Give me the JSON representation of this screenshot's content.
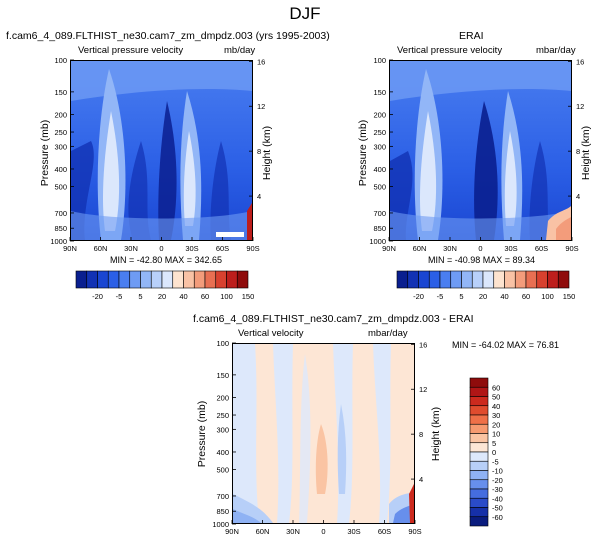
{
  "title": "DJF",
  "chart_data": [
    {
      "type": "heatmap",
      "title": "f.cam6_4_089.FLTHIST_ne30.cam7_zm_dmpdz.003 (yrs 1995-2003)",
      "left_label": "Vertical pressure velocity",
      "units": "mb/day",
      "ylabel": "Pressure (mb)",
      "ylabel_right": "Height (km)",
      "x_ticks": [
        "90N",
        "60N",
        "30N",
        "0",
        "30S",
        "60S",
        "90S"
      ],
      "y_ticks": [
        100,
        150,
        200,
        250,
        300,
        400,
        500,
        700,
        850,
        1000
      ],
      "y_right_ticks": [
        4,
        8,
        12,
        16
      ],
      "ylim": [
        1000,
        100
      ],
      "log_y": true,
      "min": "-42.80",
      "max": "342.65",
      "stats_text": "MIN = -42.80   MAX = 342.65"
    },
    {
      "type": "heatmap",
      "title": "ERAI",
      "left_label": "Vertical pressure velocity",
      "units": "mbar/day",
      "ylabel": "Pressure (mb)",
      "ylabel_right": "Height (km)",
      "x_ticks": [
        "90N",
        "60N",
        "30N",
        "0",
        "30S",
        "60S",
        "90S"
      ],
      "y_ticks": [
        100,
        150,
        200,
        250,
        300,
        400,
        500,
        700,
        850,
        1000
      ],
      "y_right_ticks": [
        4,
        8,
        12,
        16
      ],
      "ylim": [
        1000,
        100
      ],
      "log_y": true,
      "min": "-40.98",
      "max": "89.34",
      "stats_text": "MIN = -40.98   MAX = 89.34"
    },
    {
      "type": "heatmap",
      "title": "f.cam6_4_089.FLTHIST_ne30.cam7_zm_dmpdz.003 - ERAI",
      "left_label": "Vertical velocity",
      "units": "mbar/day",
      "ylabel": "Pressure (mb)",
      "ylabel_right": "Height (km)",
      "x_ticks": [
        "90N",
        "60N",
        "30N",
        "0",
        "30S",
        "60S",
        "90S"
      ],
      "y_ticks": [
        100,
        150,
        200,
        250,
        300,
        400,
        500,
        700,
        850,
        1000
      ],
      "y_right_ticks": [
        4,
        8,
        12,
        16
      ],
      "ylim": [
        1000,
        100
      ],
      "log_y": true,
      "min": "-64.02",
      "max": "76.81",
      "stats_text": "MIN = -64.02   MAX = 76.81"
    }
  ],
  "colorbars": {
    "top": {
      "labels": [
        "-20",
        "-5",
        "5",
        "20",
        "40",
        "60",
        "100",
        "150"
      ],
      "colors": [
        "#0a1f8f",
        "#1232b4",
        "#1a46d2",
        "#2b5fe6",
        "#4a7ef0",
        "#6e9bf4",
        "#92b6f7",
        "#b8d0fa",
        "#dbe7fc",
        "#fde3cf",
        "#f9c2a5",
        "#f39c7b",
        "#e86f52",
        "#d8412f",
        "#bd1e1c",
        "#8f0c0c"
      ]
    },
    "diff": {
      "labels": [
        "60",
        "50",
        "40",
        "30",
        "20",
        "10",
        "5",
        "0",
        "-5",
        "-10",
        "-20",
        "-30",
        "-40",
        "-50",
        "-60"
      ],
      "colors": [
        "#8f0c0c",
        "#b01616",
        "#cc2a1e",
        "#e04c2e",
        "#ef7048",
        "#f69a70",
        "#fac4a3",
        "#fde6d5",
        "#dde8fb",
        "#b7cff8",
        "#8fb2f4",
        "#678fec",
        "#456ddf",
        "#2a4bc9",
        "#1630a8",
        "#0a1c7e"
      ]
    }
  }
}
